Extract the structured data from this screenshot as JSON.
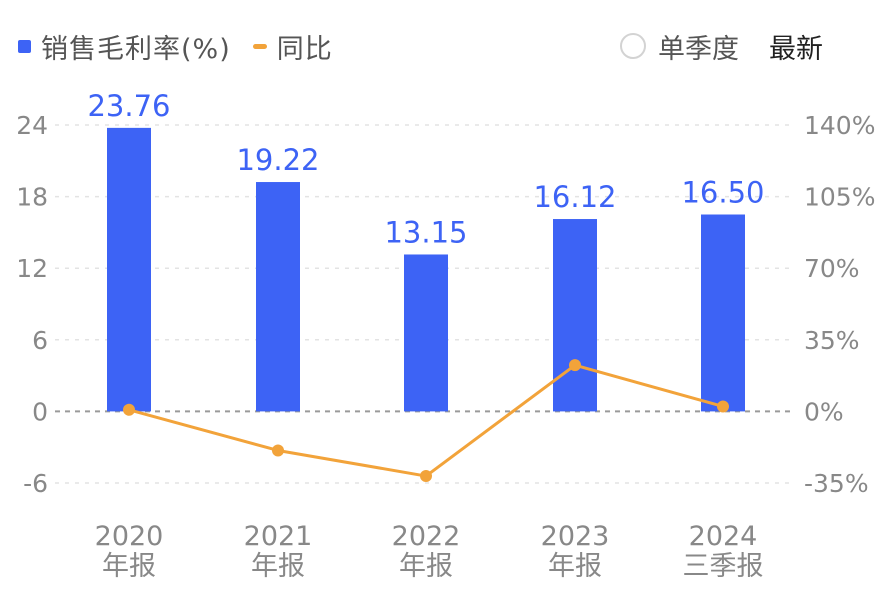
{
  "legend": {
    "bar_label": "销售毛利率(%)",
    "line_label": "同比"
  },
  "controls": {
    "single_quarter_label": "单季度",
    "latest_label": "最新"
  },
  "colors": {
    "bar": "#3d63f5",
    "line": "#f2a33a",
    "axis_text": "#888888",
    "label_text": "#3d63f5"
  },
  "chart_data": {
    "type": "bar",
    "categories": [
      [
        "2020",
        "年报"
      ],
      [
        "2021",
        "年报"
      ],
      [
        "2022",
        "年报"
      ],
      [
        "2023",
        "年报"
      ],
      [
        "2024",
        "三季报"
      ]
    ],
    "series": [
      {
        "name": "销售毛利率(%)",
        "type": "bar",
        "axis": "left",
        "values": [
          23.76,
          19.22,
          13.15,
          16.12,
          16.5
        ],
        "labels": [
          "23.76",
          "19.22",
          "13.15",
          "16.12",
          "16.50"
        ]
      },
      {
        "name": "同比",
        "type": "line",
        "axis": "right",
        "values": [
          0.8,
          -19.1,
          -31.6,
          22.6,
          2.4
        ]
      }
    ],
    "y_left": {
      "ticks": [
        24,
        18,
        12,
        6,
        0,
        -6
      ],
      "ylim": [
        -6,
        24
      ]
    },
    "y_right": {
      "ticks": [
        "140%",
        "105%",
        "70%",
        "35%",
        "0%",
        "-35%"
      ],
      "ylim": [
        -35,
        140
      ]
    },
    "grid": true,
    "legend_position": "top-left"
  }
}
